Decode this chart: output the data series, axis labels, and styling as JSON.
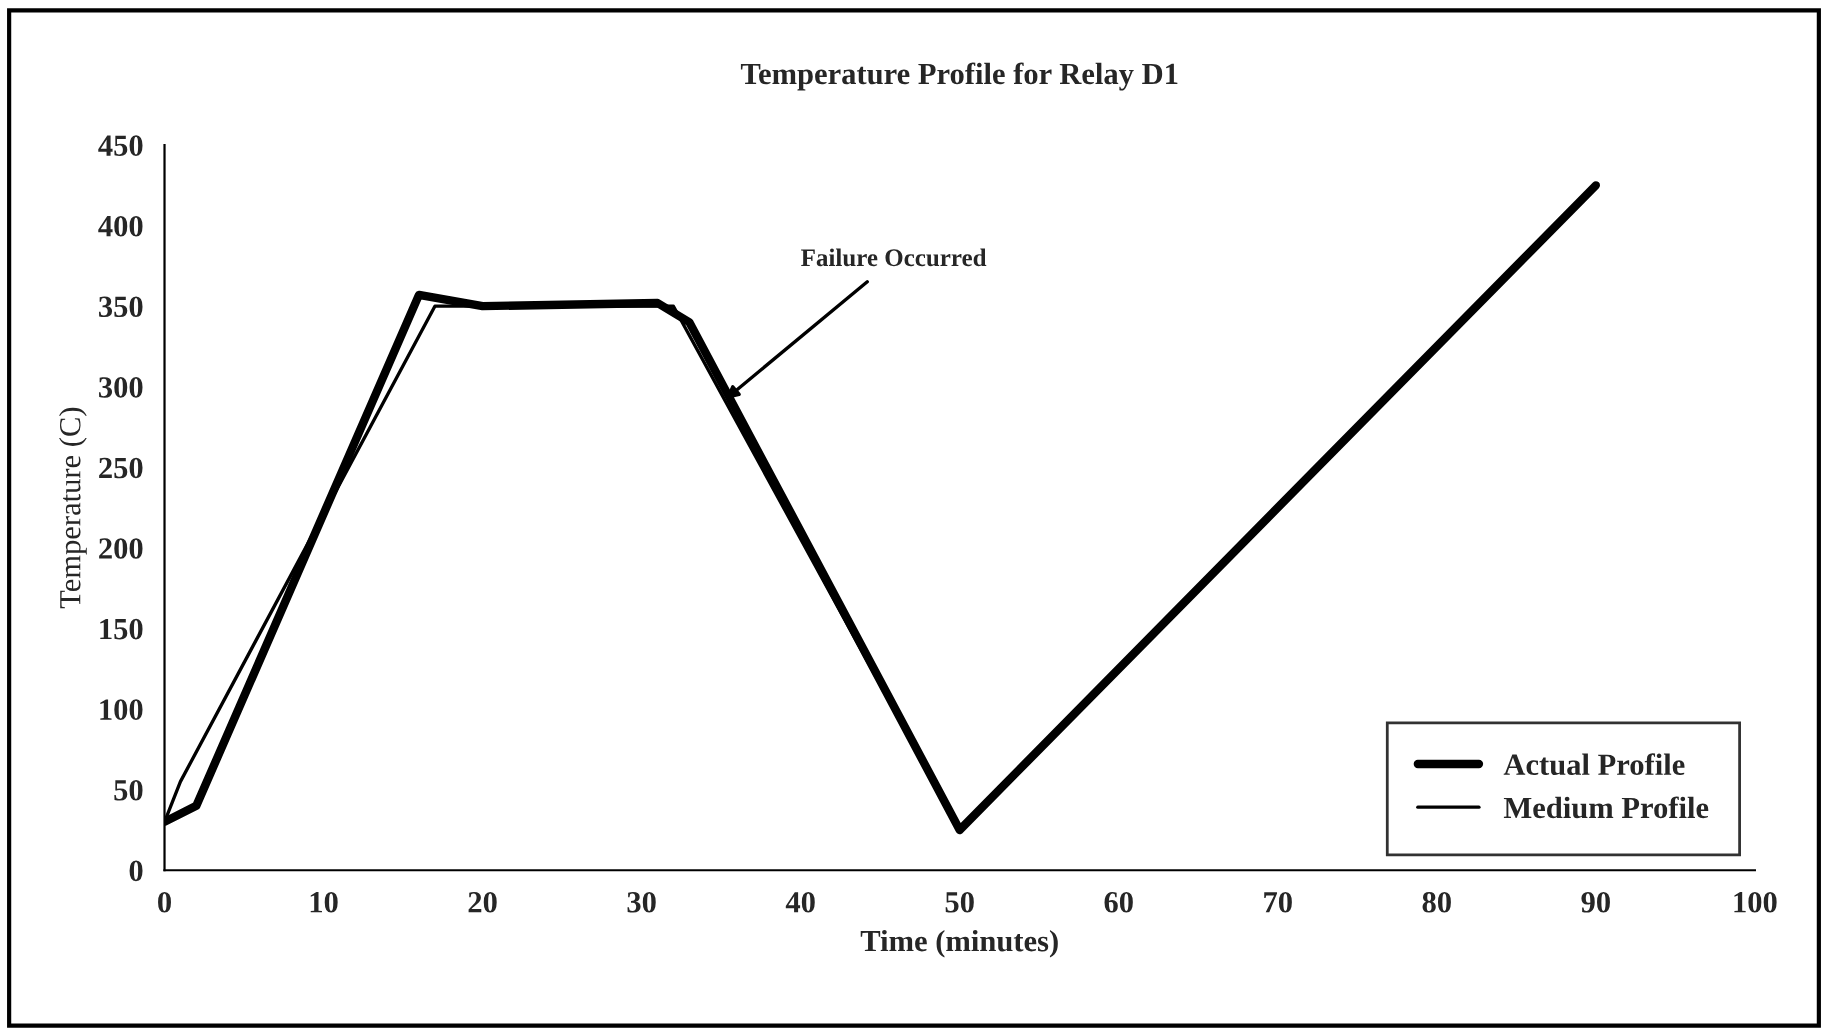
{
  "chart_data": {
    "type": "line",
    "title": "Temperature Profile for Relay D1",
    "xlabel": "Time (minutes)",
    "ylabel": "Temperature (C)",
    "xlim": [
      0,
      100
    ],
    "xticks": [
      0,
      10,
      20,
      30,
      40,
      50,
      60,
      70,
      80,
      90,
      100
    ],
    "ylim": [
      0,
      450
    ],
    "yticks": [
      0,
      50,
      100,
      150,
      200,
      250,
      300,
      350,
      400,
      450
    ],
    "series": [
      {
        "name": "Actual Profile",
        "color": "#000000",
        "x": [
          0,
          2,
          16,
          20,
          31,
          33,
          50,
          90
        ],
        "values": [
          30,
          40,
          357,
          350,
          352,
          340,
          25,
          425
        ]
      },
      {
        "name": "Medium Profile",
        "color": "#000000",
        "x": [
          0,
          1,
          17,
          30,
          32,
          50,
          90
        ],
        "values": [
          30,
          55,
          350,
          350,
          350,
          25,
          425
        ]
      }
    ],
    "annotations": [
      {
        "text": "Failure Occurred",
        "x": 35,
        "y": 290
      }
    ],
    "legend": "bottom right",
    "grid": false,
    "marker": "none",
    "line_style": "solid"
  }
}
